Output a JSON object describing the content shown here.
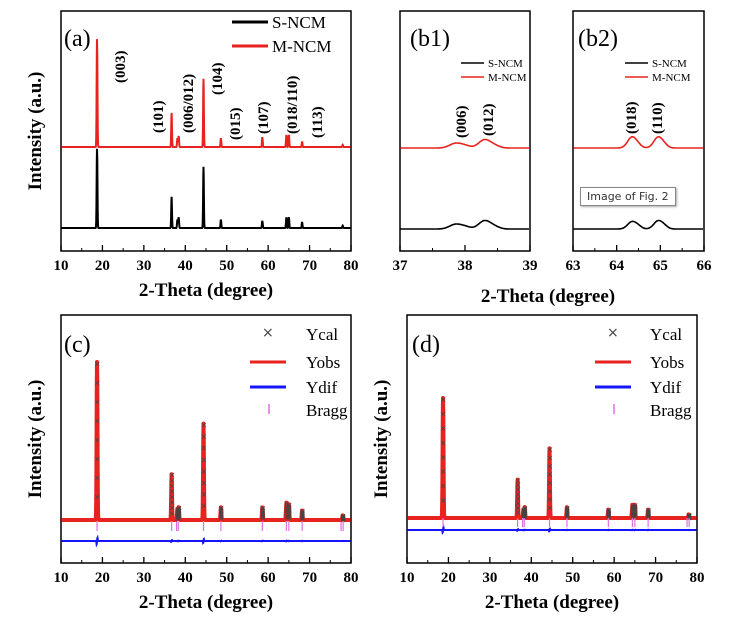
{
  "tooltip": "Image of Fig. 2",
  "chart_data": [
    {
      "panel": "(a)",
      "type": "line",
      "xlabel": "2-Theta (degree)",
      "ylabel": "Intensity (a.u.)",
      "xlim": [
        10,
        80
      ],
      "xticks": [
        10,
        20,
        30,
        40,
        50,
        60,
        70,
        80
      ],
      "legend": [
        "S-NCM",
        "M-NCM"
      ],
      "series": [
        {
          "name": "S-NCM",
          "color": "#000000",
          "baseline": 0.0,
          "peaks": [
            [
              18.7,
              0.66
            ],
            [
              36.7,
              0.26
            ],
            [
              38.1,
              0.07
            ],
            [
              38.4,
              0.09
            ],
            [
              44.4,
              0.51
            ],
            [
              48.6,
              0.07
            ],
            [
              58.6,
              0.06
            ],
            [
              64.4,
              0.09
            ],
            [
              65.0,
              0.09
            ],
            [
              68.2,
              0.05
            ],
            [
              78.0,
              0.02
            ]
          ]
        },
        {
          "name": "M-NCM",
          "color": "#e8231f",
          "baseline": 0.8,
          "peaks": [
            [
              18.7,
              0.98
            ],
            [
              36.7,
              0.31
            ],
            [
              38.1,
              0.08
            ],
            [
              38.4,
              0.1
            ],
            [
              44.4,
              0.62
            ],
            [
              48.6,
              0.08
            ],
            [
              58.6,
              0.09
            ],
            [
              64.4,
              0.11
            ],
            [
              65.0,
              0.11
            ],
            [
              68.2,
              0.05
            ],
            [
              78.0,
              0.02
            ]
          ]
        }
      ],
      "annotations": [
        "(003)",
        "(101)",
        "(006/012)",
        "(104)",
        "(015)",
        "(107)",
        "(018/110)",
        "(113)"
      ]
    },
    {
      "panel": "(b1)",
      "type": "line",
      "xlim": [
        37,
        39
      ],
      "xticks": [
        37,
        38,
        39
      ],
      "legend": [
        "S-NCM",
        "M-NCM"
      ],
      "annotations": [
        "(006)",
        "(012)"
      ],
      "series": [
        {
          "name": "S-NCM",
          "color": "#000000",
          "peaks": [
            [
              37.85,
              0.05
            ],
            [
              38.3,
              0.09
            ]
          ]
        },
        {
          "name": "M-NCM",
          "color": "#e8231f",
          "peaks": [
            [
              37.85,
              0.05
            ],
            [
              38.3,
              0.09
            ]
          ]
        }
      ]
    },
    {
      "panel": "(b2)",
      "type": "line",
      "xlim": [
        63,
        66
      ],
      "xticks": [
        63,
        64,
        65,
        66
      ],
      "legend": [
        "S-NCM",
        "M-NCM"
      ],
      "annotations": [
        "(018)",
        "(110)"
      ],
      "series": [
        {
          "name": "S-NCM",
          "color": "#000000",
          "peaks": [
            [
              64.35,
              0.08
            ],
            [
              64.95,
              0.09
            ]
          ]
        },
        {
          "name": "M-NCM",
          "color": "#e8231f",
          "peaks": [
            [
              64.35,
              0.12
            ],
            [
              64.95,
              0.12
            ]
          ]
        }
      ]
    },
    {
      "panel": "(c)",
      "type": "line",
      "xlabel": "2-Theta (degree)",
      "ylabel": "Intensity (a.u.)",
      "xlim": [
        10,
        80
      ],
      "xticks": [
        10,
        20,
        30,
        40,
        50,
        60,
        70,
        80
      ],
      "legend": [
        "Ycal",
        "Yobs",
        "Ydif",
        "Bragg"
      ],
      "peaks": [
        [
          18.7,
          1.0
        ],
        [
          36.7,
          0.29
        ],
        [
          38.1,
          0.07
        ],
        [
          38.4,
          0.08
        ],
        [
          44.4,
          0.61
        ],
        [
          48.6,
          0.08
        ],
        [
          58.6,
          0.08
        ],
        [
          64.4,
          0.11
        ],
        [
          65.0,
          0.1
        ],
        [
          68.2,
          0.06
        ],
        [
          78.0,
          0.03
        ]
      ]
    },
    {
      "panel": "(d)",
      "type": "line",
      "xlabel": "2-Theta (degree)",
      "ylabel": "Intensity (a.u.)",
      "xlim": [
        10,
        80
      ],
      "xticks": [
        10,
        20,
        30,
        40,
        50,
        60,
        70,
        80
      ],
      "legend": [
        "Ycal",
        "Yobs",
        "Ydif",
        "Bragg"
      ],
      "peaks": [
        [
          18.7,
          1.0
        ],
        [
          36.7,
          0.32
        ],
        [
          38.1,
          0.07
        ],
        [
          38.4,
          0.09
        ],
        [
          44.4,
          0.58
        ],
        [
          48.6,
          0.09
        ],
        [
          58.6,
          0.07
        ],
        [
          64.4,
          0.11
        ],
        [
          65.0,
          0.11
        ],
        [
          68.2,
          0.07
        ],
        [
          78.0,
          0.03
        ]
      ]
    }
  ],
  "bragg_positions": [
    18.7,
    36.7,
    37.9,
    38.3,
    44.4,
    48.6,
    58.6,
    64.4,
    65.0,
    68.2,
    77.6,
    78.1
  ],
  "colors": {
    "black": "#000000",
    "red": "#e8231f",
    "blue": "#1515ff",
    "bragg": "#e070e0",
    "ycal": "#444444"
  }
}
